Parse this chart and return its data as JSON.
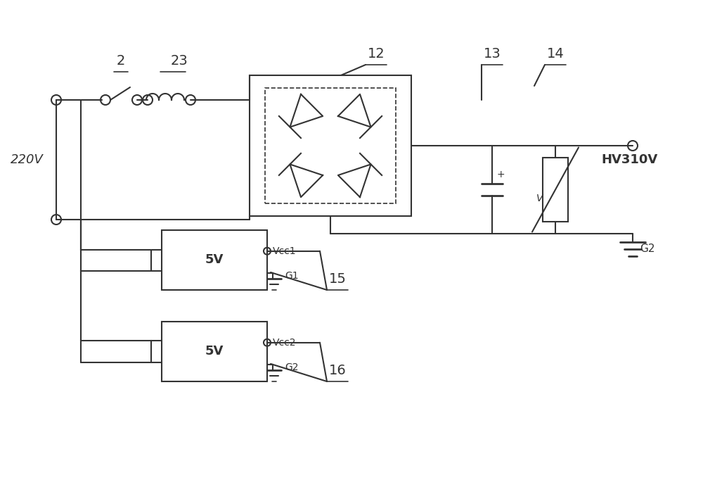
{
  "bg_color": "#ffffff",
  "line_color": "#333333",
  "line_width": 1.5,
  "fig_width": 10.0,
  "fig_height": 6.92,
  "labels": {
    "switch2": "2",
    "fuse23": "23",
    "bridge12": "12",
    "cap13": "13",
    "varistor14": "14",
    "psu15": "15",
    "psu16": "16",
    "voltage": "220V",
    "hv": "HV310V",
    "vcc1": "Vcc1",
    "g1": "G1",
    "vcc2": "Vcc2",
    "g2": "G2"
  }
}
